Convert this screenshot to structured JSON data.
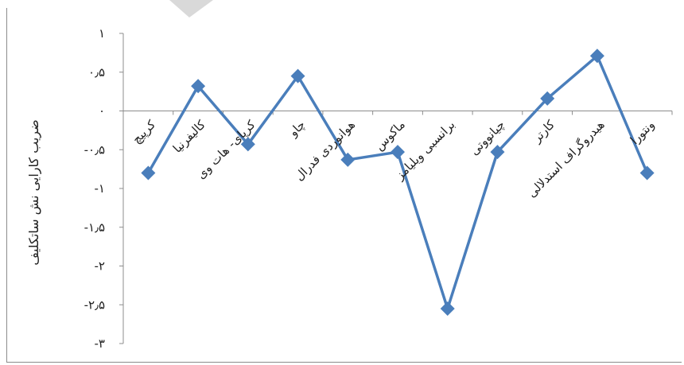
{
  "chart_data": {
    "type": "line",
    "title": "",
    "xlabel": "",
    "ylabel": "ضریب کارایی نش ساتکلیف",
    "categories": [
      "کرپیچ",
      "کالیفرنیا",
      "کرپای- هات وی",
      "چاو",
      "هوانوردی فدرال",
      "ماکوس",
      "برانسبی ویلیامز",
      "چیانووتی",
      "کارتر",
      "هیدروگراف استدلالی",
      "ونتورا"
    ],
    "series": [
      {
        "name": "",
        "values": [
          -0.8,
          0.32,
          -0.43,
          0.45,
          -0.63,
          -0.53,
          -2.55,
          -0.53,
          0.16,
          0.71,
          -0.8
        ],
        "color": "#4a7ebb"
      }
    ],
    "ylim": [
      -3,
      1
    ],
    "yticks": [
      1,
      0.5,
      0,
      -0.5,
      -1,
      -1.5,
      -2,
      -2.5,
      -3
    ],
    "ytick_labels": [
      "۱",
      "۰٫۵",
      "۰",
      "-۰٫۵",
      "-۱",
      "-۱٫۵",
      "-۲",
      "-۲٫۵",
      "-۳"
    ],
    "grid": false,
    "legend": "none",
    "marker": "diamond"
  }
}
